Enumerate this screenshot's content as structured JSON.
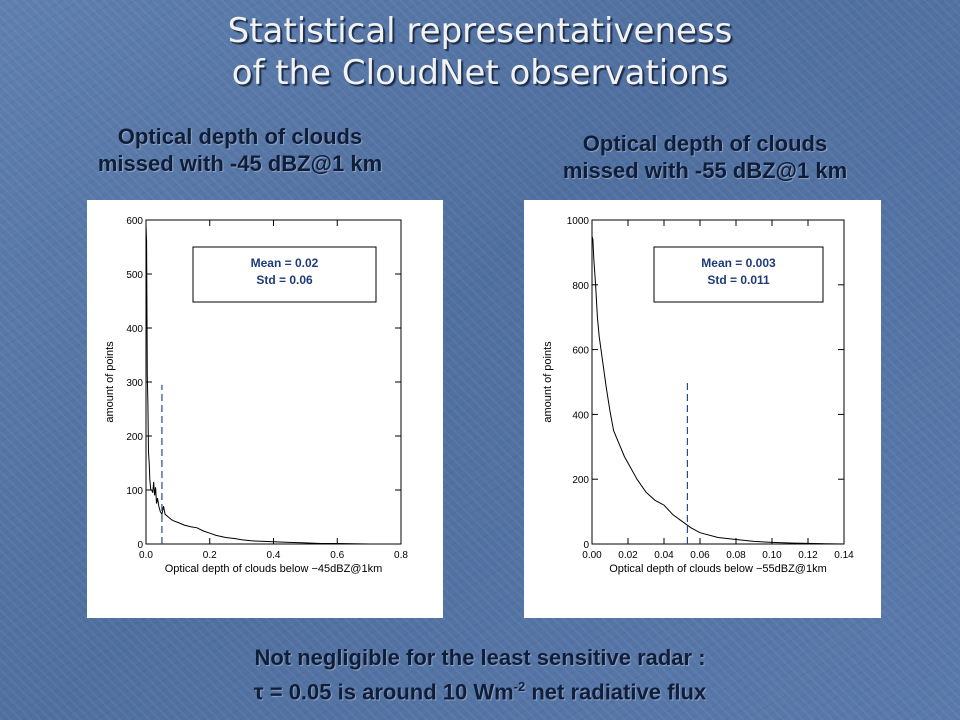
{
  "slide": {
    "title_line1": "Statistical representativeness",
    "title_line2": "of the CloudNet observations",
    "left_heading_line1": "Optical depth of clouds",
    "left_heading_line2": "missed with -45 dBZ@1 km",
    "right_heading_line1": "Optical depth of clouds",
    "right_heading_line2": "missed with -55 dBZ@1 km",
    "footer_line1": "Not negligible for the least sensitive radar :",
    "footer_tau": "τ",
    "footer_line2_a": " = 0.05 is around 10 Wm",
    "footer_sup": "-2",
    "footer_line2_b": " net radiative flux"
  },
  "chart_data": [
    {
      "type": "line",
      "title": "",
      "xlabel": "Optical depth of clouds below −45dBZ@1km",
      "ylabel": "amount of points",
      "xlim": [
        0.0,
        0.8
      ],
      "ylim": [
        0,
        600
      ],
      "xticks": [
        0.0,
        0.2,
        0.4,
        0.6,
        0.8
      ],
      "xtick_labels": [
        "0.0",
        "0.2",
        "0.4",
        "0.6",
        "0.8"
      ],
      "yticks": [
        0,
        100,
        200,
        300,
        400,
        500,
        600
      ],
      "ytick_labels": [
        "0",
        "100",
        "200",
        "300",
        "400",
        "500",
        "600"
      ],
      "stats_line1": "Mean = 0.02",
      "stats_line2": "Std = 0.06",
      "vline_x": 0.05,
      "vline_top": 295,
      "series": [
        {
          "x": [
            0.0,
            0.002,
            0.004,
            0.006,
            0.008,
            0.01,
            0.012,
            0.015,
            0.018,
            0.021,
            0.024,
            0.027,
            0.03,
            0.033,
            0.036,
            0.04,
            0.045,
            0.05,
            0.055,
            0.06,
            0.07,
            0.08,
            0.09,
            0.1,
            0.12,
            0.14,
            0.16,
            0.18,
            0.2,
            0.22,
            0.25,
            0.28,
            0.3,
            0.33,
            0.36,
            0.4,
            0.45,
            0.5,
            0.55,
            0.6,
            0.7,
            0.8
          ],
          "y": [
            590,
            560,
            310,
            260,
            170,
            150,
            120,
            100,
            100,
            95,
            115,
            90,
            105,
            75,
            85,
            70,
            60,
            55,
            70,
            55,
            50,
            45,
            42,
            40,
            35,
            32,
            30,
            24,
            20,
            16,
            12,
            10,
            8,
            6,
            5,
            4,
            3,
            2,
            1,
            1,
            0,
            0
          ]
        }
      ]
    },
    {
      "type": "line",
      "title": "",
      "xlabel": "Optical depth of clouds below −55dBZ@1km",
      "ylabel": "amount of points",
      "xlim": [
        0.0,
        0.14
      ],
      "ylim": [
        0,
        1000
      ],
      "xticks": [
        0.0,
        0.02,
        0.04,
        0.06,
        0.08,
        0.1,
        0.12,
        0.14
      ],
      "xtick_labels": [
        "0.00",
        "0.02",
        "0.04",
        "0.06",
        "0.08",
        "0.10",
        "0.12",
        "0.14"
      ],
      "yticks": [
        0,
        200,
        400,
        600,
        800,
        1000
      ],
      "ytick_labels": [
        "0",
        "200",
        "400",
        "600",
        "800",
        "1000"
      ],
      "stats_line1": "Mean = 0.003",
      "stats_line2": "Std = 0.011",
      "vline_x": 0.053,
      "vline_top": 500,
      "series": [
        {
          "x": [
            0.0,
            0.0005,
            0.001,
            0.002,
            0.003,
            0.004,
            0.005,
            0.006,
            0.008,
            0.01,
            0.012,
            0.015,
            0.018,
            0.02,
            0.025,
            0.03,
            0.035,
            0.04,
            0.045,
            0.05,
            0.055,
            0.06,
            0.07,
            0.08,
            0.09,
            0.1,
            0.11,
            0.12,
            0.13,
            0.14
          ],
          "y": [
            950,
            940,
            880,
            800,
            700,
            640,
            600,
            560,
            480,
            410,
            350,
            310,
            270,
            250,
            200,
            160,
            135,
            120,
            90,
            70,
            50,
            35,
            20,
            14,
            8,
            5,
            3,
            2,
            1,
            0
          ]
        }
      ]
    }
  ]
}
